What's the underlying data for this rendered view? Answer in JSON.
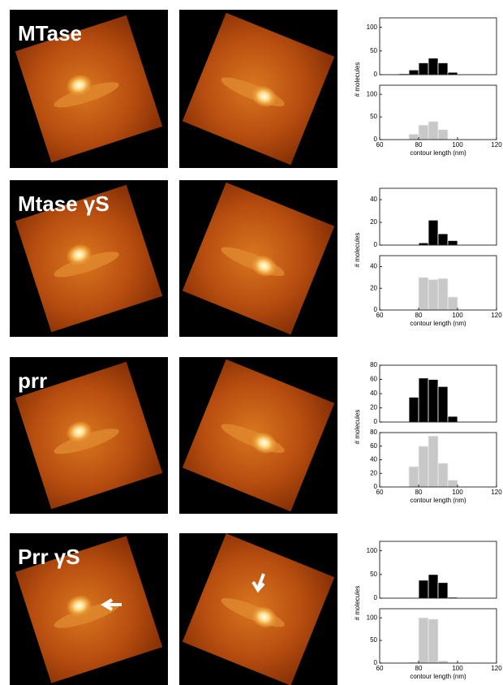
{
  "panels": [
    {
      "label": "MTase"
    },
    {
      "label": "Mtase γS"
    },
    {
      "label": "prr"
    },
    {
      "label": "Prr γS"
    }
  ],
  "chart_data": [
    {
      "type": "histogram",
      "color": "#000000",
      "bins": [
        70,
        75,
        80,
        85,
        90,
        95,
        100
      ],
      "counts": [
        2,
        10,
        25,
        35,
        25,
        5
      ],
      "xlim": [
        60,
        120
      ],
      "ylim": [
        0,
        120
      ],
      "yticks": [
        0,
        50,
        100
      ]
    },
    {
      "type": "histogram",
      "color": "#c8c8c8",
      "bins": [
        75,
        80,
        85,
        90,
        95
      ],
      "counts": [
        12,
        32,
        40,
        22
      ],
      "xlim": [
        60,
        120
      ],
      "xticks": [
        60,
        80,
        100,
        120
      ],
      "ylim": [
        0,
        120
      ],
      "yticks": [
        0,
        50,
        100
      ],
      "x_label": "contour length (nm)",
      "y_label": "# molecules"
    },
    {
      "type": "histogram",
      "color": "#000000",
      "bins": [
        80,
        85,
        90,
        95,
        100
      ],
      "counts": [
        2,
        22,
        10,
        4
      ],
      "xlim": [
        60,
        120
      ],
      "ylim": [
        0,
        50
      ],
      "yticks": [
        0,
        20,
        40
      ]
    },
    {
      "type": "histogram",
      "color": "#c8c8c8",
      "bins": [
        80,
        85,
        90,
        95,
        100
      ],
      "counts": [
        30,
        28,
        29,
        12
      ],
      "xlim": [
        60,
        120
      ],
      "xticks": [
        60,
        80,
        100,
        120
      ],
      "ylim": [
        0,
        50
      ],
      "yticks": [
        0,
        20,
        40
      ],
      "x_label": "contour length (nm)",
      "y_label": "# molecules"
    },
    {
      "type": "histogram",
      "color": "#000000",
      "bins": [
        75,
        80,
        85,
        90,
        95,
        100
      ],
      "counts": [
        35,
        62,
        60,
        50,
        8
      ],
      "xlim": [
        60,
        120
      ],
      "ylim": [
        0,
        80
      ],
      "yticks": [
        0,
        20,
        40,
        60,
        80
      ]
    },
    {
      "type": "histogram",
      "color": "#c8c8c8",
      "bins": [
        75,
        80,
        85,
        90,
        95,
        100
      ],
      "counts": [
        30,
        60,
        75,
        35,
        10
      ],
      "xlim": [
        60,
        120
      ],
      "xticks": [
        60,
        80,
        100,
        120
      ],
      "ylim": [
        0,
        80
      ],
      "yticks": [
        0,
        20,
        40,
        60,
        80
      ],
      "x_label": "contour length (nm)",
      "y_label": "# molecules"
    },
    {
      "type": "histogram",
      "color": "#000000",
      "bins": [
        80,
        85,
        90,
        95,
        100
      ],
      "counts": [
        38,
        50,
        33,
        2
      ],
      "xlim": [
        60,
        120
      ],
      "ylim": [
        0,
        120
      ],
      "yticks": [
        0,
        50,
        100
      ]
    },
    {
      "type": "histogram",
      "color": "#c8c8c8",
      "bins": [
        75,
        80,
        85,
        90,
        95
      ],
      "counts": [
        2,
        100,
        97,
        5
      ],
      "xlim": [
        60,
        120
      ],
      "xticks": [
        60,
        80,
        100,
        120
      ],
      "ylim": [
        0,
        120
      ],
      "yticks": [
        0,
        50,
        100
      ],
      "x_label": "contour length (nm)",
      "y_label": "# molecules"
    }
  ]
}
